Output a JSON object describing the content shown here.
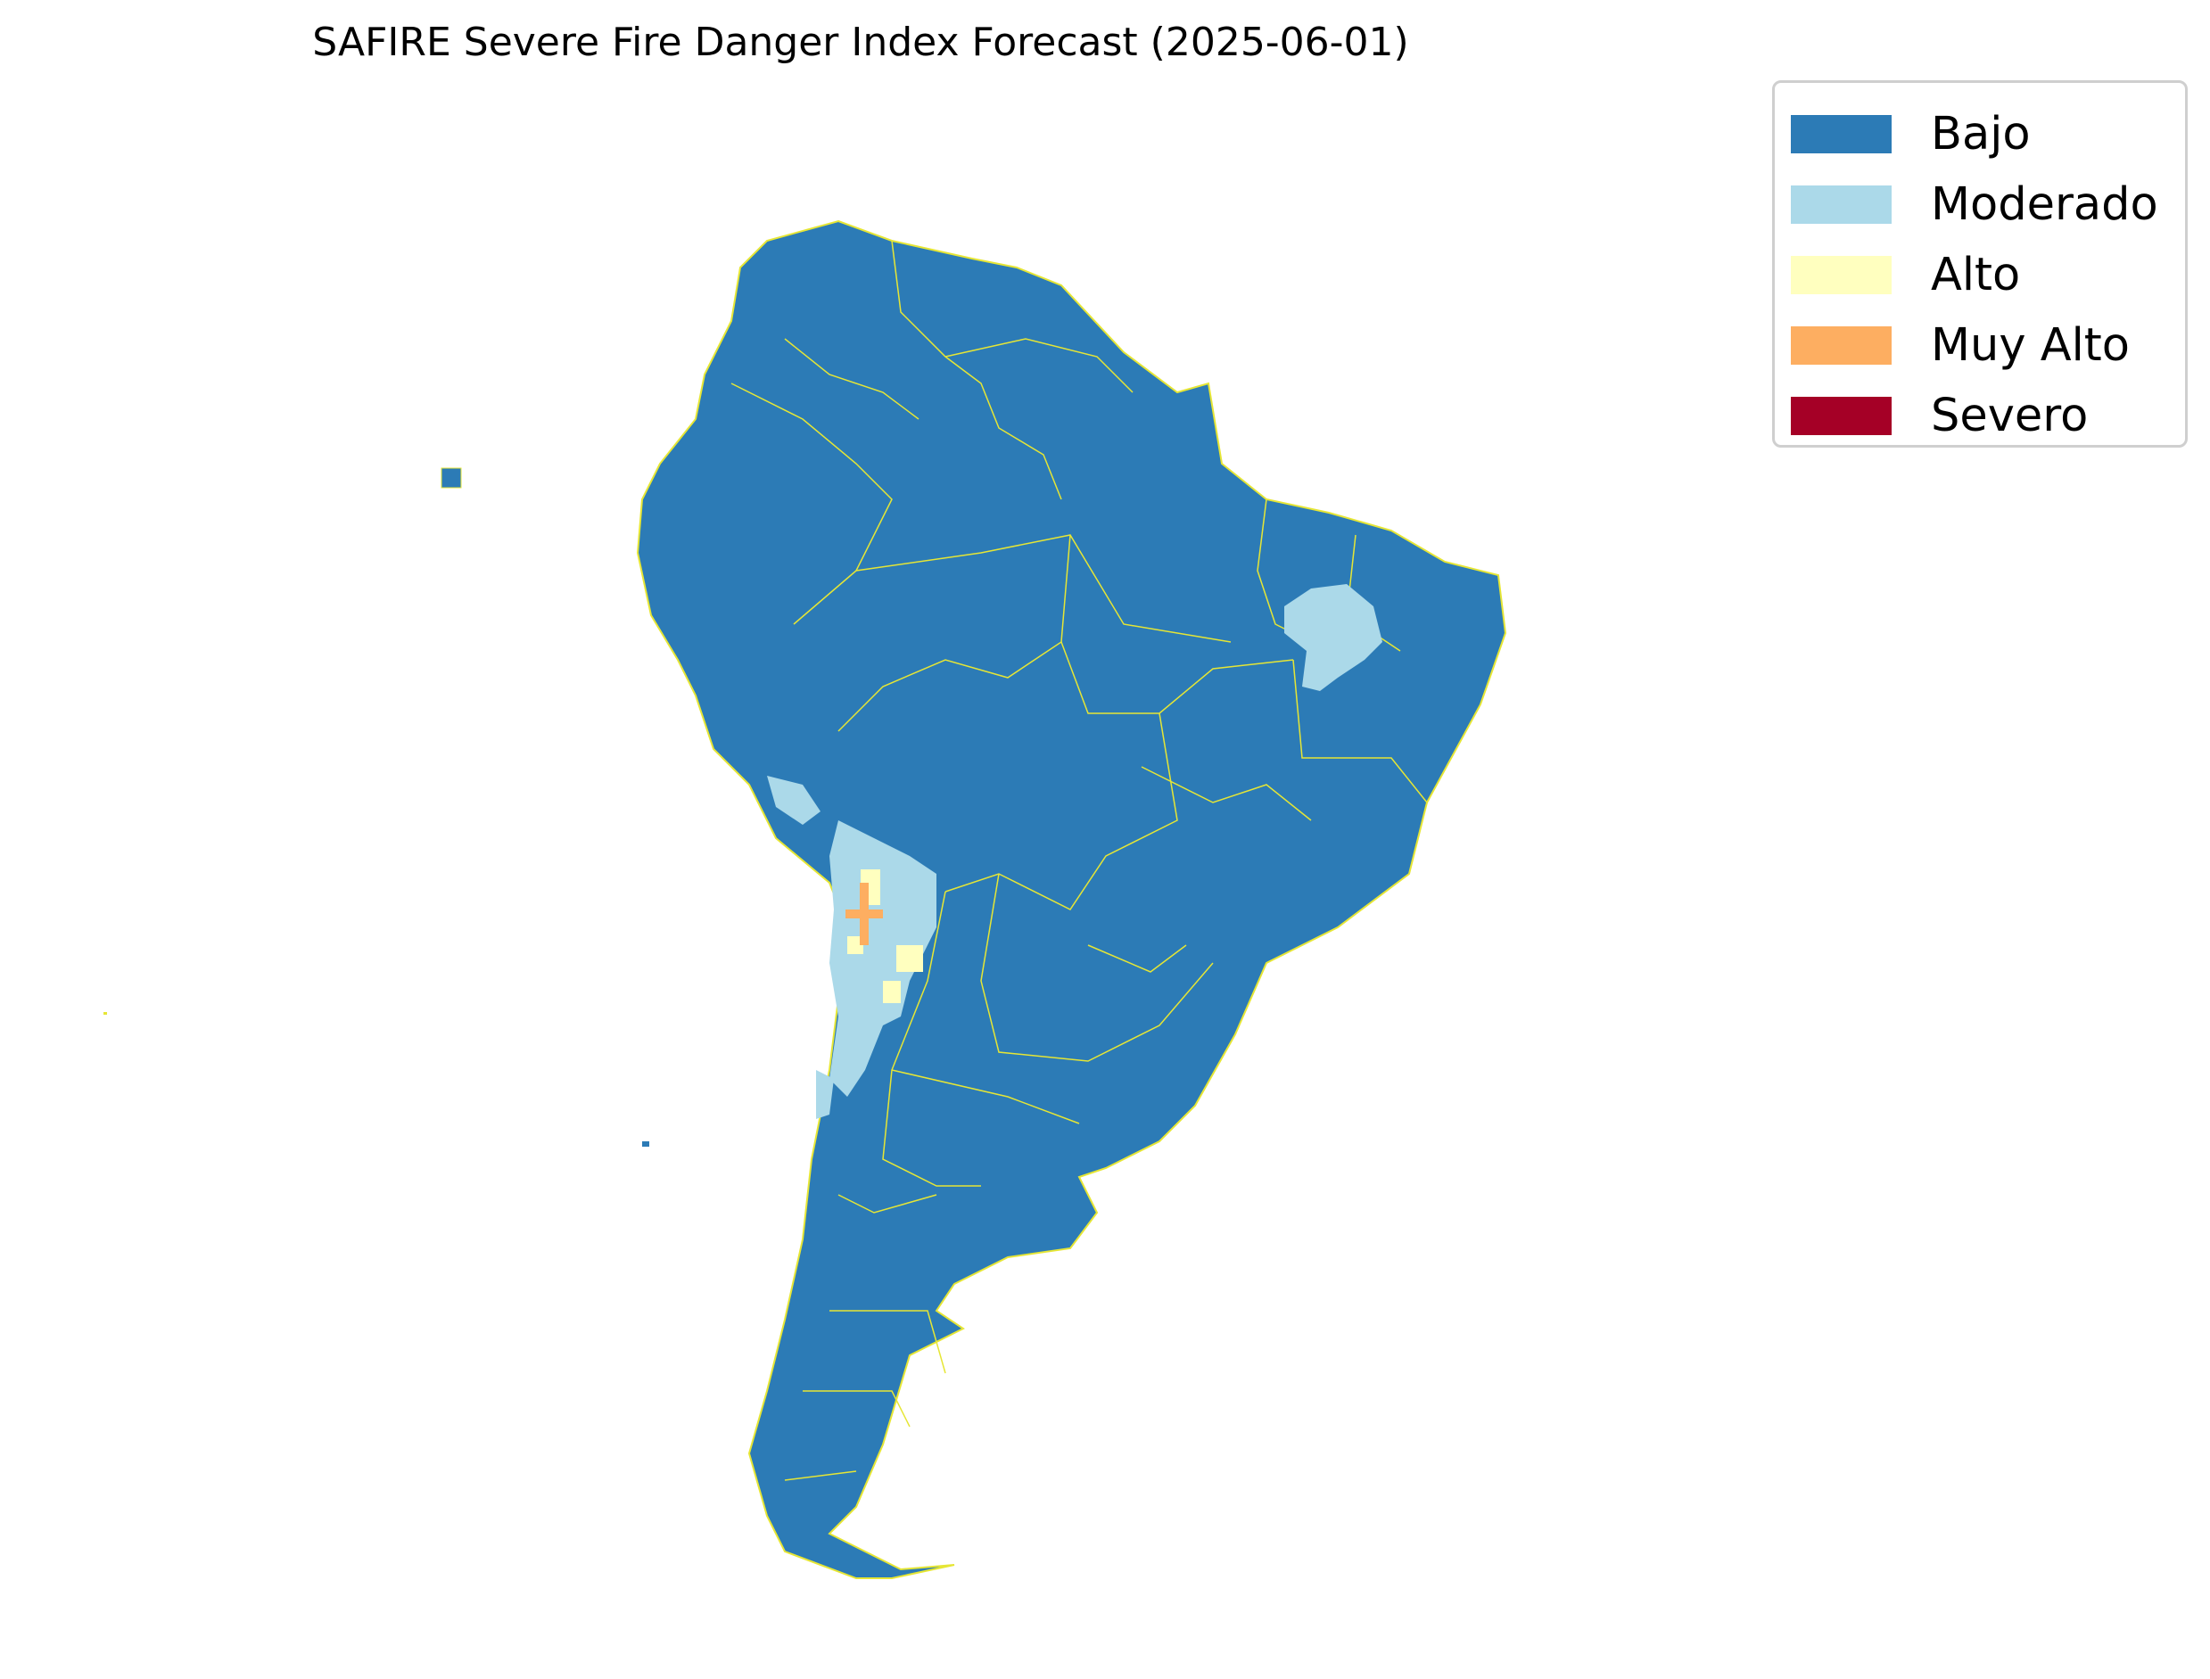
{
  "title": "SAFIRE Severe Fire Danger Index Forecast (2025-06-01)",
  "legend": {
    "items": [
      {
        "label": "Bajo",
        "color": "#2c7bb6"
      },
      {
        "label": "Moderado",
        "color": "#abd9e9"
      },
      {
        "label": "Alto",
        "color": "#ffffbf"
      },
      {
        "label": "Muy Alto",
        "color": "#fdae61"
      },
      {
        "label": "Severo",
        "color": "#a50026"
      }
    ]
  },
  "map": {
    "region": "South America",
    "boundary_color": "#e6e635",
    "dominant_class": "Bajo"
  }
}
